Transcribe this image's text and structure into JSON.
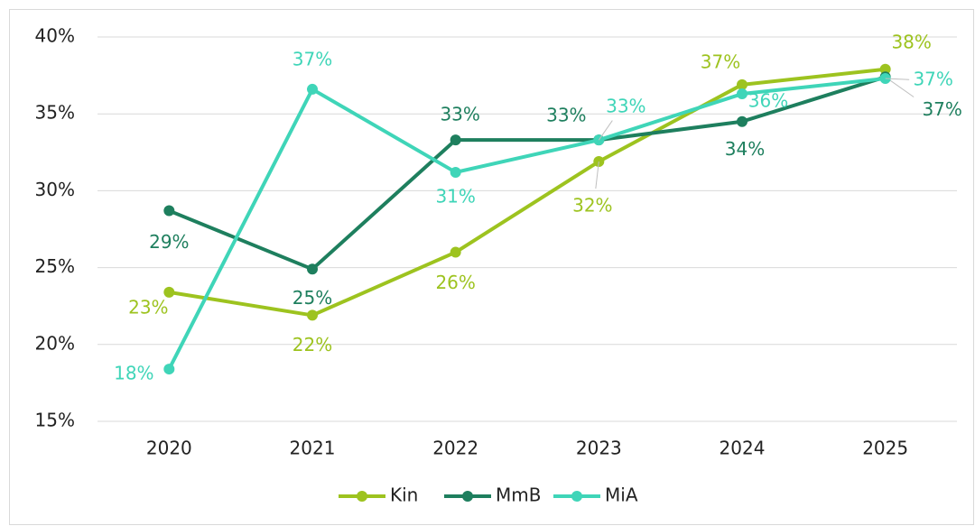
{
  "chart_data": {
    "type": "line",
    "categories": [
      "2020",
      "2021",
      "2022",
      "2023",
      "2024",
      "2025"
    ],
    "series": [
      {
        "name": "Kin",
        "color": "#9dc31f",
        "values": [
          23.4,
          21.9,
          26.0,
          31.9,
          36.9,
          37.9
        ],
        "value_labels": [
          "23%",
          "22%",
          "26%",
          "32%",
          "37%",
          "38%"
        ]
      },
      {
        "name": "MmB",
        "color": "#1e7f5e",
        "values": [
          28.7,
          24.9,
          33.3,
          33.3,
          34.5,
          37.4
        ],
        "value_labels": [
          "29%",
          "25%",
          "33%",
          "33%",
          "34%",
          "37%"
        ]
      },
      {
        "name": "MiA",
        "color": "#3fd5b8",
        "values": [
          18.4,
          36.6,
          31.2,
          33.3,
          36.3,
          37.3
        ],
        "value_labels": [
          "18%",
          "37%",
          "31%",
          "33%",
          "36%",
          "37%"
        ]
      }
    ],
    "ylim": [
      15,
      40
    ],
    "yticks": [
      {
        "value": 15,
        "label": "15%"
      },
      {
        "value": 20,
        "label": "20%"
      },
      {
        "value": 25,
        "label": "25%"
      },
      {
        "value": 30,
        "label": "30%"
      },
      {
        "value": 35,
        "label": "35%"
      },
      {
        "value": 40,
        "label": "40%"
      }
    ],
    "grid": true,
    "legend": "bottom"
  }
}
